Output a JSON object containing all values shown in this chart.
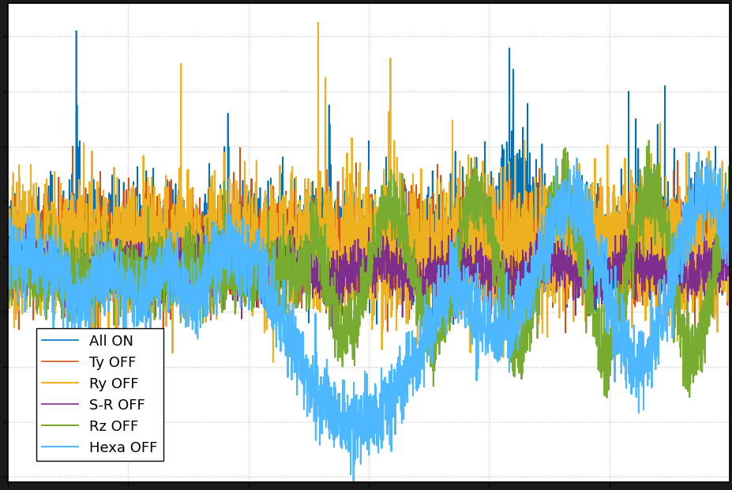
{
  "legend_labels": [
    "All ON",
    "Ty OFF",
    "Ry OFF",
    "S-R OFF",
    "Rz OFF",
    "Hexa OFF"
  ],
  "colors": [
    "#0072bd",
    "#d95319",
    "#edb120",
    "#7e2f8e",
    "#77ac30",
    "#4db8ff"
  ],
  "background_color": "#1a1a1a",
  "plot_bg_color": "#ffffff",
  "grid_color": "#bbbbbb",
  "figsize": [
    9.28,
    6.21
  ],
  "dpi": 100,
  "n_points": 3000,
  "legend_fontsize": 13
}
